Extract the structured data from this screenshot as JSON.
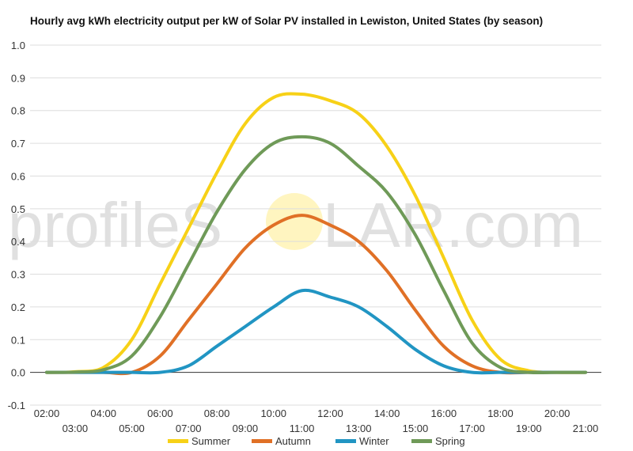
{
  "watermark": {
    "left": "profileS",
    "right": "LAR.com",
    "sun_color": "#fff3b0"
  },
  "chart_data": {
    "type": "line",
    "title": "Hourly avg kWh electricity output per kW of Solar PV installed in Lewiston, United States (by season)",
    "xlabel": "",
    "ylabel": "",
    "ylim": [
      -0.1,
      1.0
    ],
    "yticks": [
      "-0.1",
      "0.0",
      "0.1",
      "0.2",
      "0.3",
      "0.4",
      "0.5",
      "0.6",
      "0.7",
      "0.8",
      "0.9",
      "1.0"
    ],
    "grid": true,
    "legend_position": "bottom",
    "x": [
      "02:00",
      "03:00",
      "04:00",
      "05:00",
      "06:00",
      "07:00",
      "08:00",
      "09:00",
      "10:00",
      "11:00",
      "12:00",
      "13:00",
      "14:00",
      "15:00",
      "16:00",
      "17:00",
      "18:00",
      "19:00",
      "20:00",
      "21:00"
    ],
    "series": [
      {
        "name": "Summer",
        "color": "#f7d117",
        "values": [
          0,
          0.002,
          0.015,
          0.1,
          0.27,
          0.44,
          0.61,
          0.76,
          0.84,
          0.85,
          0.83,
          0.79,
          0.69,
          0.54,
          0.35,
          0.16,
          0.04,
          0.005,
          0,
          0
        ]
      },
      {
        "name": "Autumn",
        "color": "#e07026",
        "values": [
          0,
          0,
          0,
          0,
          0.05,
          0.16,
          0.27,
          0.38,
          0.45,
          0.48,
          0.45,
          0.4,
          0.31,
          0.19,
          0.08,
          0.02,
          0,
          0,
          0,
          0
        ]
      },
      {
        "name": "Winter",
        "color": "#2195c3",
        "values": [
          0,
          0,
          0,
          0,
          0,
          0.02,
          0.08,
          0.14,
          0.2,
          0.25,
          0.23,
          0.2,
          0.14,
          0.07,
          0.02,
          0,
          0,
          0,
          0,
          0
        ]
      },
      {
        "name": "Spring",
        "color": "#6f9a58",
        "values": [
          0,
          0.001,
          0.008,
          0.05,
          0.17,
          0.33,
          0.49,
          0.62,
          0.7,
          0.72,
          0.7,
          0.63,
          0.55,
          0.42,
          0.25,
          0.09,
          0.015,
          0,
          0,
          0
        ]
      }
    ]
  }
}
